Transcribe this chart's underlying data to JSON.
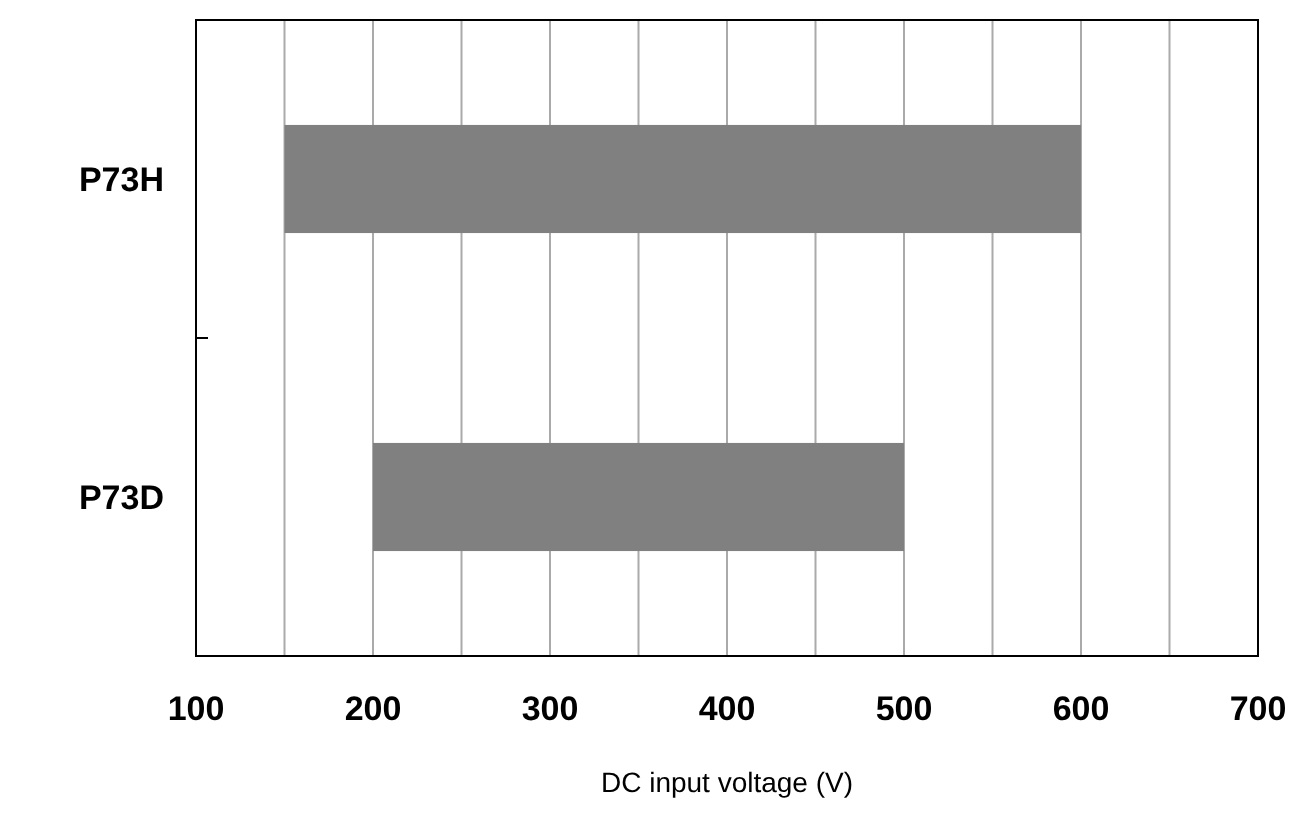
{
  "chart_data": {
    "type": "bar",
    "orientation": "horizontal",
    "categories": [
      "P73H",
      "P73D"
    ],
    "values": [
      450,
      300
    ],
    "base": [
      150,
      200
    ],
    "color": "#808080",
    "xlabel": "DC input voltage (V)",
    "xlim": [
      100,
      700
    ],
    "xticks": [
      100,
      {
        "value": 150,
        "label": null
      },
      200,
      {
        "value": 250,
        "label": null
      },
      300,
      {
        "value": 350,
        "label": null
      },
      400,
      {
        "value": 450,
        "label": null
      },
      500,
      {
        "value": 550,
        "label": null
      },
      600,
      {
        "value": 650,
        "label": null
      },
      700
    ],
    "grid": "x"
  }
}
